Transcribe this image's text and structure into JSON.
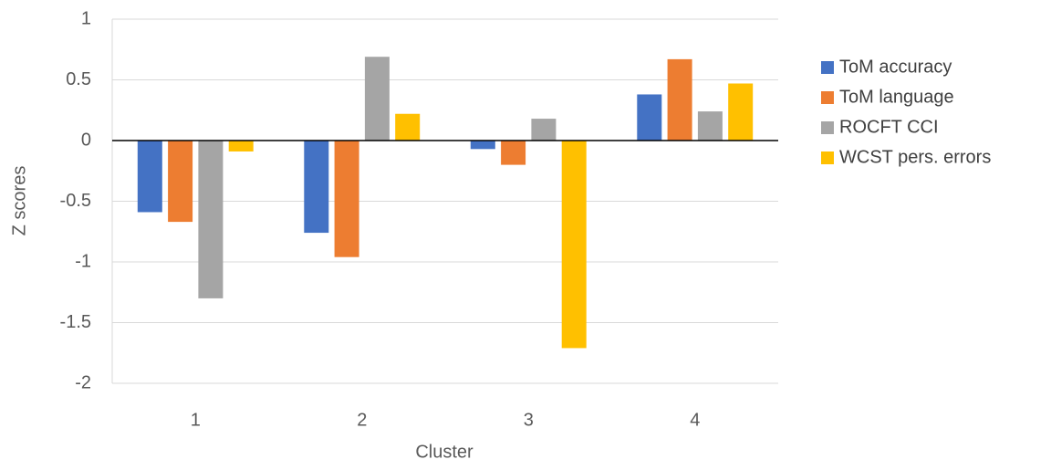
{
  "chart_data": {
    "type": "bar",
    "x_label": "Cluster",
    "y_label": "Z scores",
    "categories": [
      "1",
      "2",
      "3",
      "4"
    ],
    "series": [
      {
        "name": "ToM accuracy",
        "color": "#4472c4",
        "values": [
          -0.59,
          -0.76,
          -0.07,
          0.38
        ]
      },
      {
        "name": "ToM language",
        "color": "#ed7d31",
        "values": [
          -0.67,
          -0.96,
          -0.2,
          0.67
        ]
      },
      {
        "name": "ROCFT CCI",
        "color": "#a5a5a5",
        "values": [
          -1.3,
          0.69,
          0.18,
          0.24
        ]
      },
      {
        "name": "WCST pers. errors",
        "color": "#ffc000",
        "values": [
          -0.09,
          0.22,
          -1.71,
          0.47
        ]
      }
    ],
    "ylim": [
      -2,
      1
    ],
    "yticks": [
      -2,
      -1.5,
      -1,
      -0.5,
      0,
      0.5,
      1
    ],
    "grid": true,
    "legend": "right"
  }
}
